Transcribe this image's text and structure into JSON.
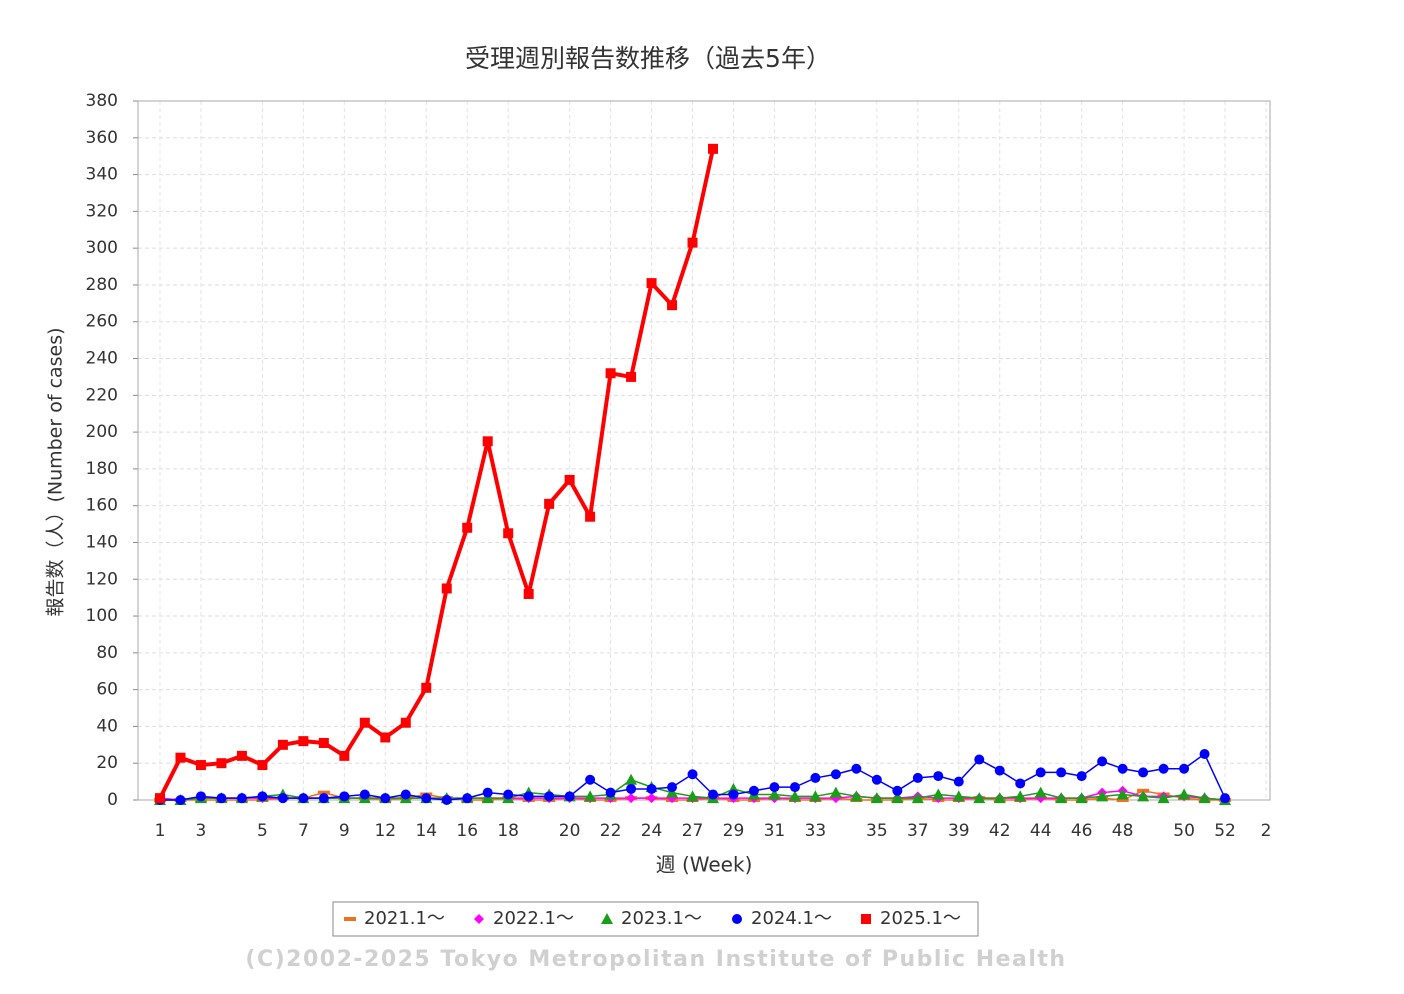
{
  "chart_data": {
    "type": "line",
    "title": "受理週別報告数推移（過去5年）",
    "x_label": "週 (Week)",
    "y_label": "報告数（人）(Number of cases)",
    "credit": "(C)2002-2025 Tokyo Metropolitan Institute of Public Health",
    "categories": [
      "1",
      null,
      "3",
      null,
      null,
      "5",
      null,
      "7",
      null,
      "9",
      null,
      "12",
      null,
      "14",
      null,
      "16",
      null,
      "18",
      null,
      null,
      "20",
      null,
      "22",
      null,
      "24",
      null,
      "27",
      null,
      "29",
      null,
      "31",
      null,
      "33",
      null,
      null,
      "35",
      null,
      "37",
      null,
      "39",
      null,
      "42",
      null,
      "44",
      null,
      "46",
      null,
      "48",
      null,
      null,
      "50",
      null,
      "52",
      null,
      "2"
    ],
    "ylim": [
      0,
      380
    ],
    "yticks": [
      0,
      20,
      40,
      60,
      80,
      100,
      120,
      140,
      160,
      180,
      200,
      220,
      240,
      260,
      280,
      300,
      320,
      340,
      360,
      380
    ],
    "grid": true,
    "series": [
      {
        "name": "2021.1～",
        "color": "#f07020",
        "marker": "dash",
        "values": [
          0,
          0,
          0,
          0,
          0,
          0,
          1,
          1,
          4,
          1,
          1,
          0,
          1,
          3,
          1,
          0,
          0,
          1,
          0,
          0,
          1,
          0,
          0,
          1,
          1,
          0,
          0,
          1,
          0,
          0,
          1,
          0,
          0,
          1,
          0,
          0,
          0,
          1,
          0,
          0,
          1,
          0,
          0,
          1,
          0,
          0,
          1,
          0,
          5,
          3,
          1,
          0,
          0,
          null,
          null
        ]
      },
      {
        "name": "2022.1～",
        "color": "#ff00ff",
        "marker": "diamond",
        "values": [
          1,
          0,
          1,
          1,
          1,
          1,
          1,
          1,
          1,
          1,
          1,
          1,
          1,
          1,
          1,
          1,
          1,
          1,
          1,
          1,
          1,
          1,
          1,
          1,
          1,
          1,
          1,
          1,
          1,
          1,
          1,
          1,
          1,
          1,
          2,
          1,
          1,
          2,
          1,
          1,
          1,
          1,
          1,
          1,
          1,
          1,
          4,
          5,
          2,
          2,
          2,
          1,
          0,
          null,
          null
        ]
      },
      {
        "name": "2023.1～",
        "color": "#1a9e1a",
        "marker": "triangle",
        "values": [
          0,
          0,
          1,
          1,
          1,
          2,
          3,
          1,
          1,
          1,
          1,
          1,
          1,
          1,
          1,
          1,
          1,
          1,
          4,
          3,
          2,
          2,
          3,
          11,
          7,
          4,
          2,
          1,
          6,
          3,
          3,
          2,
          2,
          4,
          2,
          1,
          1,
          1,
          3,
          2,
          1,
          1,
          2,
          4,
          1,
          1,
          2,
          3,
          2,
          1,
          3,
          1,
          0,
          null,
          null
        ]
      },
      {
        "name": "2024.1～",
        "color": "#0000ff",
        "marker": "circle",
        "values": [
          0,
          0,
          2,
          1,
          1,
          2,
          1,
          1,
          1,
          2,
          3,
          1,
          3,
          1,
          0,
          1,
          4,
          3,
          2,
          2,
          2,
          11,
          4,
          6,
          6,
          7,
          14,
          3,
          3,
          5,
          7,
          7,
          12,
          14,
          17,
          11,
          5,
          12,
          13,
          10,
          22,
          16,
          9,
          15,
          15,
          13,
          21,
          17,
          15,
          17,
          17,
          25,
          1,
          null,
          null
        ]
      },
      {
        "name": "2025.1～",
        "color": "#ff0000",
        "marker": "square",
        "width": 4,
        "values": [
          1,
          23,
          19,
          20,
          24,
          19,
          30,
          32,
          31,
          24,
          42,
          34,
          42,
          61,
          115,
          148,
          195,
          145,
          112,
          161,
          174,
          154,
          232,
          230,
          281,
          269,
          303,
          354,
          null,
          null,
          null,
          null,
          null,
          null,
          null,
          null,
          null,
          null,
          null,
          null,
          null,
          null,
          null,
          null,
          null,
          null,
          null,
          null,
          null,
          null,
          null,
          null,
          null,
          null,
          null
        ]
      }
    ]
  }
}
